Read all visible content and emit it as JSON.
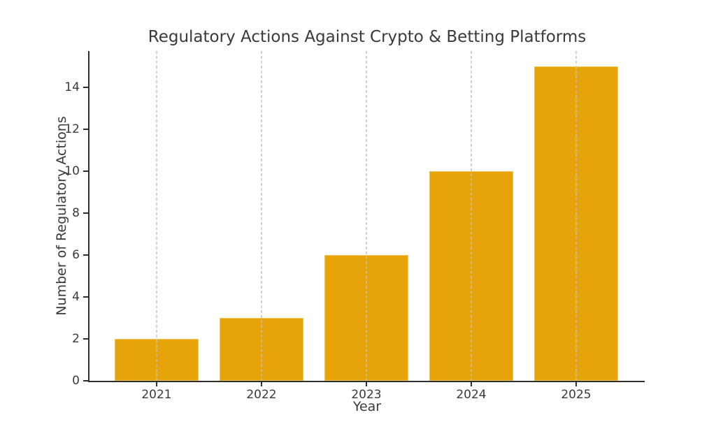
{
  "chart_data": {
    "type": "bar",
    "title": "Regulatory Actions Against Crypto & Betting Platforms",
    "xlabel": "Year",
    "ylabel": "Number of Regulatory Actions",
    "categories": [
      "2021",
      "2022",
      "2023",
      "2024",
      "2025"
    ],
    "values": [
      2,
      3,
      6,
      10,
      15
    ],
    "yticks": [
      0,
      2,
      4,
      6,
      8,
      10,
      12,
      14
    ],
    "ylim": [
      0,
      15.75
    ],
    "bar_color": "#E6A40A",
    "bar_edge_color": "rgba(255,235,180,0.45)",
    "grid": "vertical-dashed",
    "grid_color": "rgba(195,195,195,0.75)",
    "axis_color": "#2F2F2F",
    "text_color": "#3A3A3A",
    "background": "#FFFFFF",
    "legend": "none"
  }
}
